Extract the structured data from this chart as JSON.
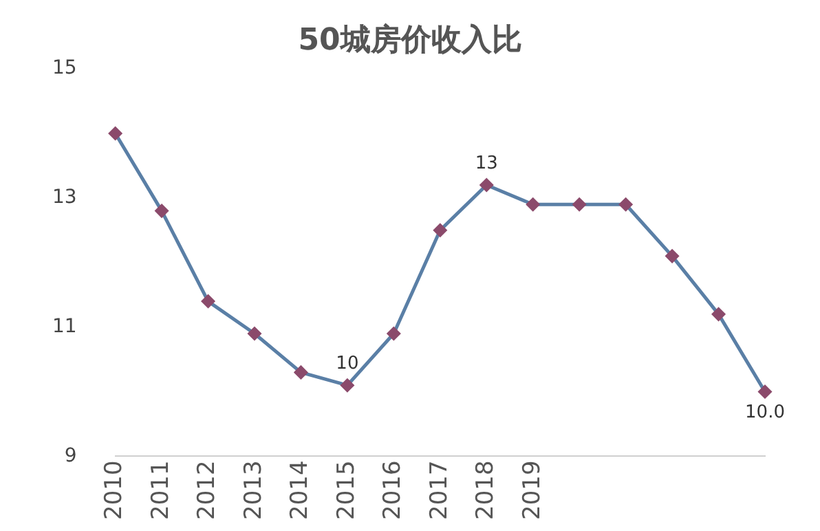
{
  "chart_data": {
    "type": "line",
    "title": "50城房价收入比",
    "categories": [
      "2010",
      "2011",
      "2012",
      "2013",
      "2014",
      "2015",
      "2016",
      "2017",
      "2018",
      "2019",
      null,
      null,
      null,
      null,
      null
    ],
    "series": [
      {
        "color": "#5a7fa6",
        "values": [
          14.0,
          12.8,
          11.4,
          10.9,
          10.3,
          10.1,
          10.9,
          12.5,
          13.2,
          12.9,
          12.9,
          12.9,
          12.1,
          11.2,
          10.0
        ],
        "value_labels": [
          null,
          null,
          null,
          null,
          null,
          "10",
          null,
          null,
          "13",
          null,
          null,
          null,
          null,
          null,
          "10.0"
        ]
      }
    ],
    "ylim": [
      9,
      15
    ],
    "yticks": [
      9,
      11,
      13,
      15
    ],
    "grid": false,
    "legend": false,
    "marker": "diamond",
    "line_style": "solid"
  }
}
